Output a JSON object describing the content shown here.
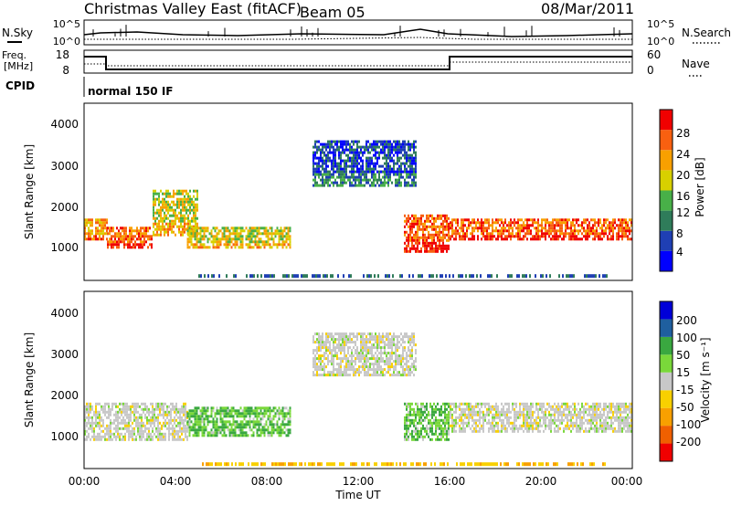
{
  "header": {
    "title": "Christmas Valley East (fitACF)",
    "beam": "Beam 05",
    "date": "08/Mar/2011"
  },
  "top_panels": {
    "nsky_label": "N.Sky",
    "nsky_ticks": [
      "10^5",
      "10^0"
    ],
    "nsearch_label": "N.Search",
    "nsearch_ticks": [
      "10^5",
      "10^0"
    ],
    "freq_label": "Freq.",
    "freq_unit": "[MHz]",
    "freq_ticks": [
      "18",
      "8"
    ],
    "nave_label": "Nave",
    "nave_ticks": [
      "60",
      "0"
    ],
    "cpid_label": "CPID",
    "cpid_value": "normal 150 IF"
  },
  "chart_data": [
    {
      "type": "heatmap",
      "name": "power",
      "ylabel": "Slant Range [km]",
      "yticks": [
        "1000",
        "2000",
        "3000",
        "4000"
      ],
      "ylim": [
        200,
        4500
      ],
      "colorbar_label": "Power [dB]",
      "colorbar_ticks": [
        "28",
        "24",
        "20",
        "16",
        "12",
        "8",
        "4"
      ],
      "colorbar_colors": [
        "#0000ff",
        "#1f3fb4",
        "#2f7c5a",
        "#48b048",
        "#d8d000",
        "#f8a000",
        "#f86010",
        "#f00000"
      ],
      "regions": [
        {
          "x_hours": [
            0.0,
            1.0
          ],
          "range_km": [
            1200,
            1700
          ],
          "level": 5
        },
        {
          "x_hours": [
            1.0,
            3.0
          ],
          "range_km": [
            1000,
            1500
          ],
          "level": 6
        },
        {
          "x_hours": [
            3.0,
            5.0
          ],
          "range_km": [
            1300,
            2400
          ],
          "level": 4
        },
        {
          "x_hours": [
            4.5,
            9.0
          ],
          "range_km": [
            1000,
            1500
          ],
          "level": 4
        },
        {
          "x_hours": [
            10.0,
            14.5
          ],
          "range_km": [
            2500,
            3600
          ],
          "level": 1
        },
        {
          "x_hours": [
            14.0,
            16.0
          ],
          "range_km": [
            900,
            1800
          ],
          "level": 6
        },
        {
          "x_hours": [
            16.0,
            24.0
          ],
          "range_km": [
            1200,
            1700
          ],
          "level": 6
        }
      ]
    },
    {
      "type": "heatmap",
      "name": "velocity",
      "ylabel": "Slant Range [km]",
      "yticks": [
        "1000",
        "2000",
        "3000",
        "4000"
      ],
      "ylim": [
        200,
        4500
      ],
      "xlabel": "Time UT",
      "xticks": [
        "00:00",
        "04:00",
        "08:00",
        "12:00",
        "16:00",
        "20:00",
        "00:00"
      ],
      "xlim": [
        0,
        24
      ],
      "colorbar_label": "Velocity [m s⁻¹]",
      "colorbar_ticks": [
        "200",
        "100",
        "50",
        "15",
        "-15",
        "-50",
        "-100",
        "-200"
      ],
      "colorbar_colors": [
        "#f00000",
        "#f06000",
        "#f8a000",
        "#f8d000",
        "#c8c8c8",
        "#7ad83a",
        "#3aa840",
        "#1f5f9f",
        "#0000d8"
      ],
      "regions": [
        {
          "x_hours": [
            0.0,
            4.5
          ],
          "range_km": [
            900,
            1800
          ],
          "velocity": 0
        },
        {
          "x_hours": [
            4.5,
            9.0
          ],
          "range_km": [
            1000,
            1700
          ],
          "velocity": 30
        },
        {
          "x_hours": [
            10.0,
            14.5
          ],
          "range_km": [
            2500,
            3500
          ],
          "velocity": 0
        },
        {
          "x_hours": [
            14.0,
            16.0
          ],
          "range_km": [
            900,
            1800
          ],
          "velocity": 30
        },
        {
          "x_hours": [
            16.0,
            24.0
          ],
          "range_km": [
            1100,
            1800
          ],
          "velocity": 0
        }
      ]
    }
  ]
}
